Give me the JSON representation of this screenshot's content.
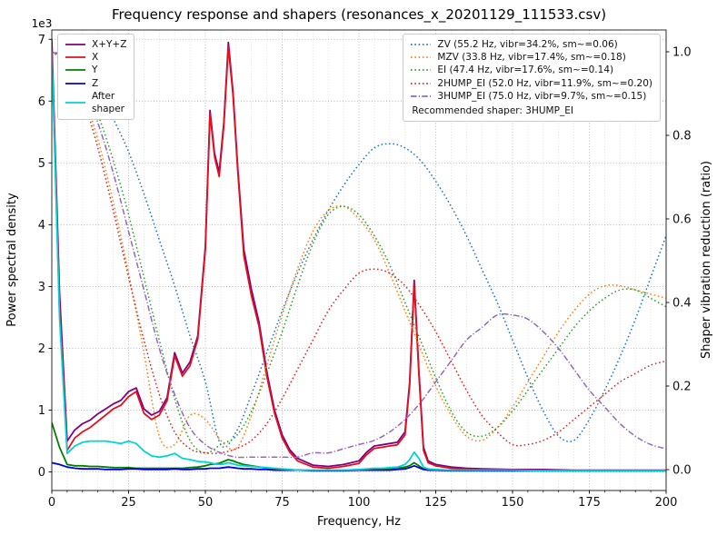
{
  "title": "Frequency response and shapers (resonances_x_20201129_111533.csv)",
  "axes": {
    "x_label": "Frequency, Hz",
    "y_left_label": "Power spectral density",
    "y_right_label": "Shaper vibration reduction (ratio)",
    "y_left_offset": "1e3",
    "x_ticks": [
      0,
      25,
      50,
      75,
      100,
      125,
      150,
      175,
      200
    ],
    "y_left_ticks": [
      0,
      1,
      2,
      3,
      4,
      5,
      6,
      7
    ],
    "y_right_ticks": [
      "0.0",
      "0.2",
      "0.4",
      "0.6",
      "0.8",
      "1.0"
    ]
  },
  "chart_data": {
    "type": "line",
    "title": "Frequency response and shapers (resonances_x_20201129_111533.csv)",
    "xlabel": "Frequency, Hz",
    "ylabel_left": "Power spectral density",
    "ylabel_right": "Shaper vibration reduction (ratio)",
    "y_left_unit": "1e3",
    "x_range": [
      0,
      200
    ],
    "y_left_range": [
      0,
      7.3
    ],
    "y_right_range": [
      0,
      1.05
    ],
    "grid": true,
    "x_psd": [
      0,
      2.5,
      5,
      7.5,
      10,
      12.5,
      15,
      17.5,
      20,
      22.5,
      25,
      27.5,
      30,
      32.5,
      35,
      37.5,
      40,
      42.5,
      45,
      47.5,
      50,
      51.5,
      53,
      54.5,
      56,
      57.5,
      59,
      60.5,
      62.5,
      65,
      67.5,
      70,
      72.5,
      75,
      77.5,
      80,
      85,
      90,
      95,
      100,
      102.5,
      105,
      107.5,
      110,
      112.5,
      115,
      116.5,
      118,
      119.5,
      121,
      122.5,
      125,
      130,
      135,
      140,
      150,
      160,
      170,
      180,
      190,
      200
    ],
    "psd_series": [
      {
        "name": "X+Y+Z",
        "color": "#800080",
        "style": "solid",
        "values": [
          7.0,
          2.9,
          0.5,
          0.68,
          0.78,
          0.84,
          0.94,
          1.02,
          1.1,
          1.16,
          1.3,
          1.36,
          1.02,
          0.92,
          0.98,
          1.2,
          1.93,
          1.6,
          1.78,
          2.2,
          3.65,
          5.85,
          5.15,
          4.85,
          5.65,
          6.95,
          6.15,
          4.95,
          3.6,
          2.95,
          2.42,
          1.62,
          1.0,
          0.6,
          0.36,
          0.22,
          0.11,
          0.09,
          0.12,
          0.18,
          0.32,
          0.42,
          0.44,
          0.46,
          0.48,
          0.65,
          1.45,
          3.1,
          1.65,
          0.4,
          0.18,
          0.12,
          0.08,
          0.06,
          0.05,
          0.04,
          0.04,
          0.03,
          0.03,
          0.03,
          0.03
        ]
      },
      {
        "name": "X",
        "color": "#e01020",
        "style": "solid",
        "values": [
          6.85,
          2.6,
          0.35,
          0.55,
          0.65,
          0.72,
          0.82,
          0.92,
          1.02,
          1.08,
          1.22,
          1.3,
          0.95,
          0.85,
          0.92,
          1.15,
          1.88,
          1.55,
          1.72,
          2.15,
          3.6,
          5.8,
          5.1,
          4.78,
          5.6,
          6.88,
          6.1,
          4.9,
          3.5,
          2.85,
          2.35,
          1.55,
          0.95,
          0.55,
          0.32,
          0.18,
          0.08,
          0.06,
          0.09,
          0.14,
          0.28,
          0.38,
          0.4,
          0.42,
          0.44,
          0.6,
          1.4,
          3.05,
          1.6,
          0.35,
          0.15,
          0.1,
          0.06,
          0.04,
          0.03,
          0.03,
          0.02,
          0.02,
          0.02,
          0.02,
          0.02
        ]
      },
      {
        "name": "Y",
        "color": "#007f00",
        "style": "solid",
        "values": [
          0.8,
          0.4,
          0.12,
          0.1,
          0.1,
          0.09,
          0.09,
          0.08,
          0.07,
          0.07,
          0.07,
          0.06,
          0.06,
          0.06,
          0.06,
          0.06,
          0.06,
          0.06,
          0.07,
          0.08,
          0.1,
          0.12,
          0.13,
          0.14,
          0.17,
          0.2,
          0.18,
          0.15,
          0.12,
          0.1,
          0.08,
          0.06,
          0.05,
          0.04,
          0.04,
          0.03,
          0.03,
          0.03,
          0.03,
          0.04,
          0.04,
          0.05,
          0.05,
          0.05,
          0.06,
          0.08,
          0.1,
          0.15,
          0.1,
          0.05,
          0.04,
          0.04,
          0.03,
          0.03,
          0.02,
          0.02,
          0.02,
          0.02,
          0.02,
          0.02,
          0.02
        ]
      },
      {
        "name": "Z",
        "color": "#0000e0",
        "style": "solid",
        "values": [
          0.15,
          0.12,
          0.08,
          0.06,
          0.05,
          0.05,
          0.05,
          0.04,
          0.04,
          0.04,
          0.05,
          0.05,
          0.04,
          0.04,
          0.04,
          0.04,
          0.05,
          0.04,
          0.04,
          0.05,
          0.05,
          0.06,
          0.06,
          0.06,
          0.07,
          0.08,
          0.07,
          0.06,
          0.05,
          0.05,
          0.04,
          0.04,
          0.03,
          0.03,
          0.03,
          0.03,
          0.02,
          0.02,
          0.02,
          0.03,
          0.03,
          0.03,
          0.03,
          0.03,
          0.04,
          0.05,
          0.07,
          0.1,
          0.07,
          0.04,
          0.03,
          0.03,
          0.02,
          0.02,
          0.02,
          0.02,
          0.02,
          0.02,
          0.02,
          0.02,
          0.02
        ]
      },
      {
        "name": "After\nshaper",
        "color": "#00d5d5",
        "style": "solid",
        "values": [
          6.8,
          2.5,
          0.3,
          0.42,
          0.48,
          0.5,
          0.5,
          0.5,
          0.48,
          0.46,
          0.5,
          0.46,
          0.34,
          0.26,
          0.24,
          0.26,
          0.3,
          0.22,
          0.2,
          0.17,
          0.16,
          0.15,
          0.13,
          0.12,
          0.13,
          0.15,
          0.13,
          0.11,
          0.1,
          0.09,
          0.08,
          0.07,
          0.06,
          0.05,
          0.04,
          0.03,
          0.03,
          0.03,
          0.03,
          0.04,
          0.05,
          0.06,
          0.06,
          0.07,
          0.08,
          0.12,
          0.2,
          0.32,
          0.22,
          0.08,
          0.05,
          0.04,
          0.03,
          0.03,
          0.03,
          0.03,
          0.02,
          0.02,
          0.02,
          0.02,
          0.02
        ]
      }
    ],
    "x_shapers": [
      0,
      5,
      10,
      15,
      20,
      25,
      30,
      35,
      40,
      45,
      50,
      55,
      60,
      65,
      70,
      75,
      80,
      85,
      90,
      95,
      100,
      105,
      110,
      115,
      120,
      125,
      130,
      135,
      140,
      145,
      150,
      155,
      160,
      165,
      170,
      175,
      180,
      185,
      190,
      195,
      200
    ],
    "shaper_series": [
      {
        "name": "ZV",
        "label": "ZV (55.2 Hz, vibr=34.2%, sm~=0.06)",
        "color": "#1f77b4",
        "style": "dotted",
        "values": [
          1.0,
          0.99,
          0.96,
          0.91,
          0.84,
          0.76,
          0.66,
          0.55,
          0.44,
          0.32,
          0.21,
          0.06,
          0.09,
          0.18,
          0.28,
          0.38,
          0.47,
          0.55,
          0.62,
          0.68,
          0.73,
          0.77,
          0.78,
          0.77,
          0.74,
          0.69,
          0.63,
          0.56,
          0.48,
          0.4,
          0.31,
          0.22,
          0.14,
          0.08,
          0.07,
          0.12,
          0.19,
          0.27,
          0.36,
          0.46,
          0.56
        ]
      },
      {
        "name": "MZV",
        "label": "MZV (33.8 Hz, vibr=17.4%, sm~=0.18)",
        "color": "#ff7f0e",
        "style": "dotted",
        "values": [
          1.0,
          0.97,
          0.9,
          0.79,
          0.64,
          0.47,
          0.28,
          0.08,
          0.06,
          0.13,
          0.12,
          0.07,
          0.05,
          0.13,
          0.25,
          0.37,
          0.48,
          0.57,
          0.62,
          0.63,
          0.6,
          0.55,
          0.47,
          0.38,
          0.29,
          0.2,
          0.13,
          0.08,
          0.07,
          0.1,
          0.15,
          0.21,
          0.27,
          0.33,
          0.38,
          0.42,
          0.44,
          0.44,
          0.43,
          0.42,
          0.41
        ]
      },
      {
        "name": "EI",
        "label": "EI (47.4 Hz, vibr=17.6%, sm~=0.14)",
        "color": "#2ca02c",
        "style": "dotted",
        "values": [
          1.0,
          0.98,
          0.93,
          0.85,
          0.74,
          0.61,
          0.46,
          0.31,
          0.17,
          0.07,
          0.04,
          0.06,
          0.08,
          0.14,
          0.23,
          0.33,
          0.44,
          0.54,
          0.61,
          0.63,
          0.61,
          0.56,
          0.49,
          0.4,
          0.31,
          0.22,
          0.14,
          0.09,
          0.08,
          0.1,
          0.14,
          0.19,
          0.24,
          0.29,
          0.34,
          0.38,
          0.41,
          0.43,
          0.43,
          0.41,
          0.39
        ]
      },
      {
        "name": "2HUMP_EI",
        "label": "2HUMP_EI (52.0 Hz, vibr=11.9%, sm~=0.20)",
        "color": "#d62728",
        "style": "dotted",
        "values": [
          1.0,
          0.97,
          0.89,
          0.77,
          0.62,
          0.46,
          0.31,
          0.18,
          0.09,
          0.05,
          0.04,
          0.04,
          0.05,
          0.07,
          0.11,
          0.17,
          0.24,
          0.31,
          0.38,
          0.43,
          0.47,
          0.48,
          0.47,
          0.44,
          0.39,
          0.33,
          0.26,
          0.19,
          0.13,
          0.09,
          0.06,
          0.06,
          0.07,
          0.09,
          0.12,
          0.15,
          0.18,
          0.21,
          0.23,
          0.25,
          0.26
        ]
      },
      {
        "name": "3HUMP_EI",
        "label": "3HUMP_EI (75.0 Hz, vibr=9.7%, sm~=0.15)",
        "color": "#9467bd",
        "style": "dashdot",
        "values": [
          1.0,
          0.98,
          0.92,
          0.83,
          0.71,
          0.57,
          0.43,
          0.29,
          0.18,
          0.1,
          0.06,
          0.04,
          0.03,
          0.03,
          0.03,
          0.03,
          0.03,
          0.04,
          0.04,
          0.05,
          0.06,
          0.07,
          0.09,
          0.12,
          0.16,
          0.21,
          0.26,
          0.31,
          0.34,
          0.37,
          0.37,
          0.36,
          0.33,
          0.29,
          0.24,
          0.19,
          0.15,
          0.11,
          0.08,
          0.06,
          0.05
        ]
      }
    ],
    "recommended_label": "Recommended shaper: 3HUMP_EI"
  }
}
